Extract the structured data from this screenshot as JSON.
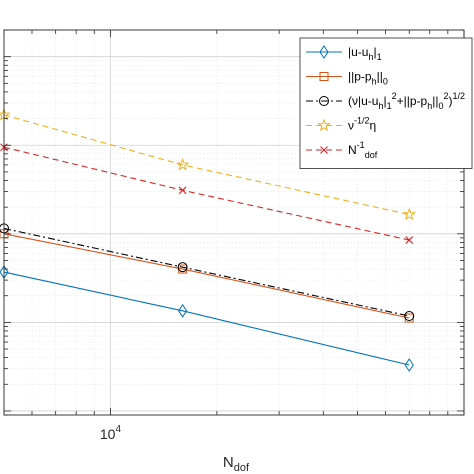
{
  "chart_data": {
    "type": "line",
    "xscale": "log",
    "yscale": "log",
    "xlabel": "N",
    "xlabel_sub": "dof",
    "ylabel": "",
    "xtick_labels": [
      {
        "x": 10000,
        "base": "10",
        "exp": "4"
      }
    ],
    "xlim": [
      5000,
      100000
    ],
    "ylim": [
      0.0009,
      20
    ],
    "grid": true,
    "legend_position": "top-right",
    "series": [
      {
        "name": "|u-u_h|_1",
        "legend_parts": [
          {
            "t": "|u-u"
          },
          {
            "t": "h",
            "s": "sub"
          },
          {
            "t": "|"
          },
          {
            "t": "1",
            "s": "sub"
          }
        ],
        "color": "#0072BD",
        "dash": "",
        "marker": "diamond",
        "x": [
          5000,
          16000,
          70000
        ],
        "y": [
          0.037,
          0.0135,
          0.0033
        ]
      },
      {
        "name": "||p-p_h||_0",
        "legend_parts": [
          {
            "t": "||p-p"
          },
          {
            "t": "h",
            "s": "sub"
          },
          {
            "t": "||"
          },
          {
            "t": "0",
            "s": "sub"
          }
        ],
        "color": "#D95319",
        "dash": "",
        "marker": "square",
        "x": [
          5000,
          16000,
          70000
        ],
        "y": [
          0.1,
          0.04,
          0.0112
        ]
      },
      {
        "name": "(ν|u-u_h|_1^2+||p-p_h||_0^2)^1/2",
        "legend_parts": [
          {
            "t": "(ν|u-u"
          },
          {
            "t": "h",
            "s": "sub"
          },
          {
            "t": "|"
          },
          {
            "t": "1",
            "s": "sub"
          },
          {
            "t": "2",
            "s": "sup"
          },
          {
            "t": "+||p-p"
          },
          {
            "t": "h",
            "s": "sub"
          },
          {
            "t": "||"
          },
          {
            "t": "0",
            "s": "sub"
          },
          {
            "t": "2",
            "s": "sup"
          },
          {
            "t": ")"
          },
          {
            "t": "1/2",
            "s": "sup"
          }
        ],
        "color": "#000000",
        "dash": "7 3 2 3",
        "marker": "circle",
        "x": [
          5000,
          16000,
          70000
        ],
        "y": [
          0.115,
          0.042,
          0.0118
        ]
      },
      {
        "name": "ν^-1/2 η",
        "legend_parts": [
          {
            "t": "ν"
          },
          {
            "t": "-1/2",
            "s": "sup"
          },
          {
            "t": "η"
          }
        ],
        "color": "#EDB120",
        "dash": "6 4",
        "marker": "star",
        "x": [
          5000,
          16000,
          70000
        ],
        "y": [
          2.2,
          0.6,
          0.165
        ]
      },
      {
        "name": "N_dof^-1",
        "legend_parts": [
          {
            "t": "N"
          },
          {
            "t": "-1",
            "s": "sup"
          },
          {
            "t": "dof",
            "s": "sub"
          }
        ],
        "color": "#D62728",
        "dash": "6 4",
        "marker": "x",
        "x": [
          5000,
          16000,
          70000
        ],
        "y": [
          0.95,
          0.31,
          0.085
        ]
      }
    ]
  }
}
